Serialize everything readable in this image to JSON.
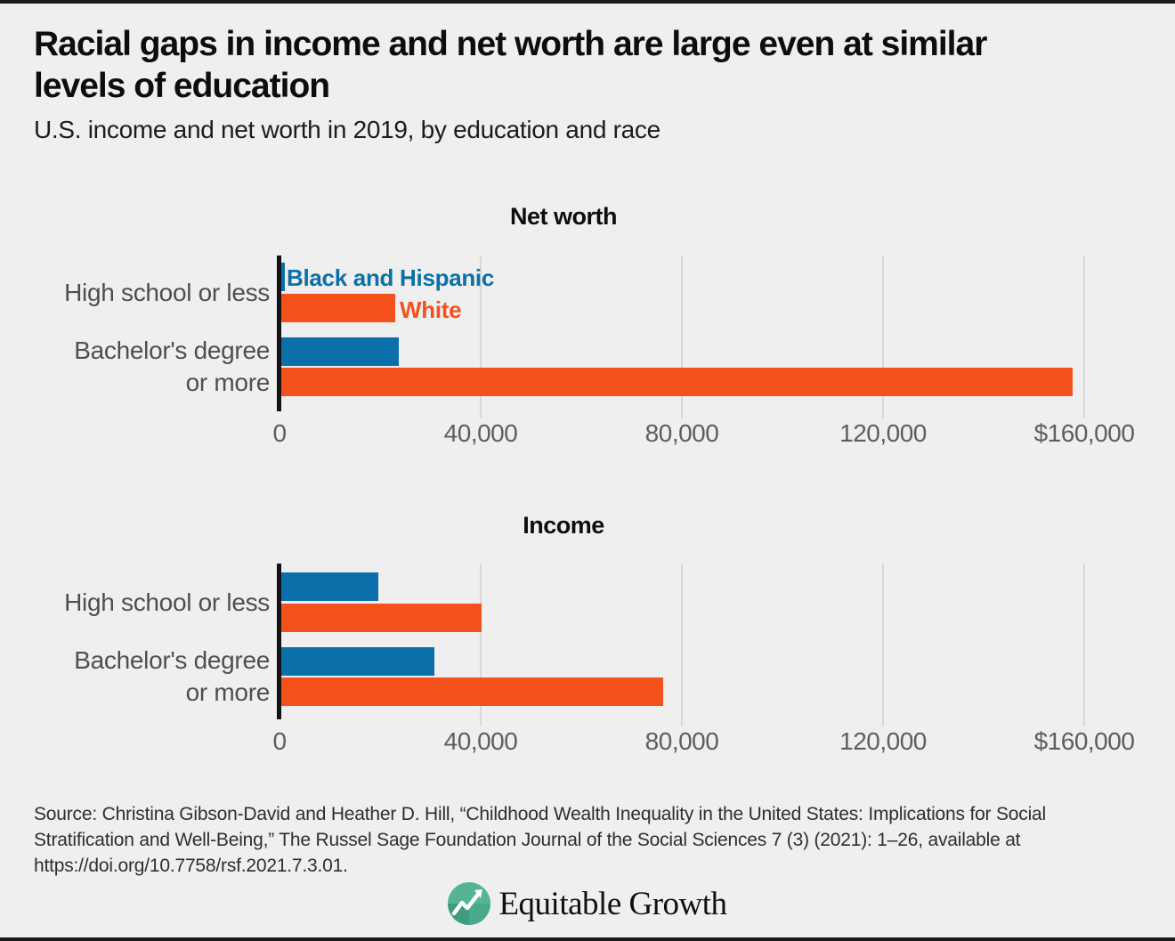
{
  "page": {
    "background_color": "#efefef",
    "border_color": "#1a1a1a"
  },
  "header": {
    "title": "Racial gaps in income and net worth are large even at similar levels of education",
    "title_lines": [
      "Racial gaps in income and net worth are large even at similar",
      "levels of education"
    ],
    "subtitle": "U.S. income and net worth in 2019, by education and race"
  },
  "colors": {
    "black_hispanic_series": "#0b6fa9",
    "white_series": "#f5511d",
    "axis": "#121212",
    "gridline": "#d8d8d8",
    "tick_label": "#5e5e5e",
    "category_label": "#4f4f4f"
  },
  "legend": [
    {
      "label": "Black and Hispanic",
      "color": "#0b6fa9"
    },
    {
      "label": "White",
      "color": "#f5511d"
    }
  ],
  "chart_data": [
    {
      "type": "bar",
      "orientation": "horizontal",
      "title": "Net worth",
      "categories": [
        "High school or less",
        "Bachelor's degree or more"
      ],
      "category_label_lines": [
        [
          "High school or less"
        ],
        [
          "Bachelor's degree",
          "or more"
        ]
      ],
      "series": [
        {
          "name": "Black and Hispanic",
          "values": [
            700,
            23300
          ]
        },
        {
          "name": "White",
          "values": [
            22700,
            157400
          ]
        }
      ],
      "xlim": [
        0,
        160000
      ],
      "x_ticks": [
        {
          "value": 0,
          "label": "0"
        },
        {
          "value": 40000,
          "label": "40,000"
        },
        {
          "value": 80000,
          "label": "80,000"
        },
        {
          "value": 120000,
          "label": "120,000"
        },
        {
          "value": 160000,
          "label": "$160,000"
        }
      ],
      "grid": true,
      "legend_position": "inside-top-left"
    },
    {
      "type": "bar",
      "orientation": "horizontal",
      "title": "Income",
      "categories": [
        "High school or less",
        "Bachelor's degree or more"
      ],
      "category_label_lines": [
        [
          "High school or less"
        ],
        [
          "Bachelor's degree",
          "or more"
        ]
      ],
      "series": [
        {
          "name": "Black and Hispanic",
          "values": [
            19300,
            30400
          ]
        },
        {
          "name": "White",
          "values": [
            39800,
            76000
          ]
        }
      ],
      "xlim": [
        0,
        160000
      ],
      "x_ticks": [
        {
          "value": 0,
          "label": "0"
        },
        {
          "value": 40000,
          "label": "40,000"
        },
        {
          "value": 80000,
          "label": "80,000"
        },
        {
          "value": 120000,
          "label": "120,000"
        },
        {
          "value": 160000,
          "label": "$160,000"
        }
      ],
      "grid": true,
      "legend_position": "none"
    }
  ],
  "footer": {
    "source": "Source: Christina Gibson-David and Heather D. Hill, “Childhood Wealth Inequality in the United States: Implications for Social Stratification and Well-Being,” The Russel Sage Foundation Journal of the Social Sciences 7 (3) (2021): 1–26, available at https://doi.org/10.7758/rsf.2021.7.3.01.",
    "logo_text": "Equitable Growth"
  }
}
